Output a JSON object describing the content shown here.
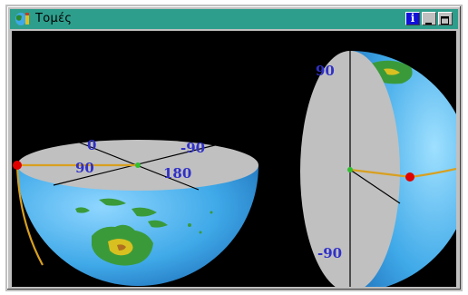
{
  "window": {
    "title": "Τομές",
    "buttons": {
      "info_label": "i"
    }
  },
  "scene": {
    "left_hemisphere_labels": {
      "top": "0",
      "right_top": "-90",
      "left": "90",
      "right": "180"
    },
    "right_hemisphere_labels": {
      "top": "90",
      "bottom": "-90"
    },
    "colors": {
      "background": "#000000",
      "ocean": "#3fa9e8",
      "land": "#3a9a3a",
      "land_inner": "#d8c020",
      "cut_plane": "#c0c0c0",
      "label": "#3030c8",
      "path_line": "#d8a020",
      "marker_red": "#e00000",
      "marker_green": "#30c030"
    }
  }
}
